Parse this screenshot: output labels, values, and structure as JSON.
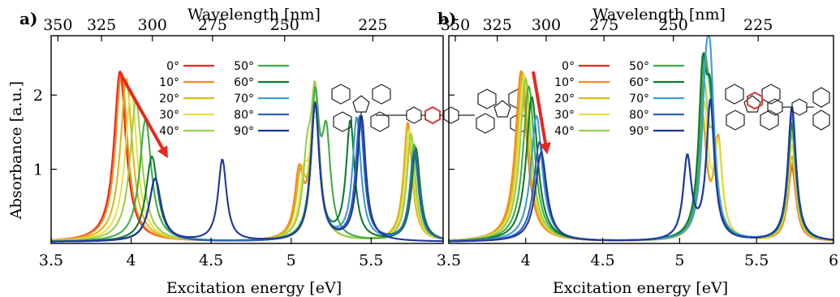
{
  "chart_data": [
    {
      "panel_label": "a)",
      "type": "line",
      "xlabel": "Excitation energy [eV]",
      "ylabel": "Absorbance [a.u.]",
      "top_axis_label": "Wavelength [nm]",
      "xlim": [
        3.5,
        5.95
      ],
      "ylim": [
        0,
        2.8
      ],
      "x_ticks": [
        3.5,
        4,
        4.5,
        5,
        5.5
      ],
      "x_tick_labels": [
        "3.5",
        "4",
        "4.5",
        "5",
        "5.5"
      ],
      "y_ticks": [
        1,
        2
      ],
      "y_tick_labels": [
        "1",
        "2"
      ],
      "top_ticks_nm": [
        350,
        325,
        300,
        275,
        250,
        225
      ],
      "top_tick_labels": [
        "350",
        "325",
        "300",
        "275",
        "250",
        "225"
      ],
      "legend_placement": "top-center",
      "arrow": {
        "from": {
          "x": 3.93,
          "y": 2.3
        },
        "to": {
          "x": 4.23,
          "y": 1.15
        },
        "color": "#e8281e"
      },
      "series": [
        {
          "name": "0°",
          "color": "#e8281e",
          "x": [
            3.93,
            5.05,
            5.15,
            5.73
          ],
          "y": [
            2.3,
            0.85,
            2.05,
            1.6
          ]
        },
        {
          "name": "10°",
          "color": "#f58a1f",
          "x": [
            3.94,
            5.05,
            5.15,
            5.73
          ],
          "y": [
            2.28,
            0.85,
            2.05,
            1.6
          ]
        },
        {
          "name": "20°",
          "color": "#d7bb14",
          "x": [
            3.97,
            5.06,
            5.15,
            5.73
          ],
          "y": [
            2.2,
            0.8,
            2.0,
            1.55
          ]
        },
        {
          "name": "30°",
          "color": "#e8e04a",
          "x": [
            4.0,
            5.08,
            5.15,
            5.74
          ],
          "y": [
            2.05,
            0.72,
            1.95,
            1.5
          ]
        },
        {
          "name": "40°",
          "color": "#9bcf4c",
          "x": [
            4.03,
            5.1,
            5.15,
            5.75
          ],
          "y": [
            1.9,
            0.9,
            1.9,
            1.45
          ]
        },
        {
          "name": "50°",
          "color": "#41ad49",
          "x": [
            4.09,
            5.22,
            5.15,
            5.77
          ],
          "y": [
            1.65,
            1.3,
            1.85,
            1.3
          ]
        },
        {
          "name": "60°",
          "color": "#0f7a30",
          "x": [
            4.13,
            5.37,
            5.15,
            5.78
          ],
          "y": [
            1.15,
            1.6,
            1.85,
            1.25
          ]
        },
        {
          "name": "70°",
          "color": "#3f9bd6",
          "x": [
            4.15,
            5.41,
            5.15,
            5.77
          ],
          "y": [
            0.85,
            1.65,
            1.85,
            1.2
          ]
        },
        {
          "name": "80°",
          "color": "#2c62b6",
          "x": [
            4.15,
            5.43,
            5.15,
            5.77
          ],
          "y": [
            0.85,
            1.67,
            1.85,
            1.2
          ]
        },
        {
          "name": "90°",
          "color": "#21379b",
          "x": [
            4.15,
            5.44,
            5.15,
            4.57
          ],
          "y": [
            0.85,
            1.68,
            1.85,
            1.1
          ]
        }
      ]
    },
    {
      "panel_label": "b)",
      "type": "line",
      "xlabel": "Excitation energy [eV]",
      "ylabel": "",
      "top_axis_label": "Wavelength [nm]",
      "xlim": [
        3.5,
        6.0
      ],
      "ylim": [
        0,
        2.8
      ],
      "x_ticks": [
        3.5,
        4,
        4.5,
        5,
        5.5,
        6
      ],
      "x_tick_labels": [
        "3.5",
        "4",
        "4.5",
        "5",
        "5.5",
        "6"
      ],
      "y_ticks": [
        1,
        2
      ],
      "y_tick_labels": [
        "",
        ""
      ],
      "top_ticks_nm": [
        350,
        325,
        300,
        275,
        250,
        225
      ],
      "top_tick_labels": [
        "350",
        "325",
        "300",
        "275",
        "250",
        "225"
      ],
      "legend_placement": "top-center",
      "arrow": {
        "from": {
          "x": 4.05,
          "y": 2.3
        },
        "to": {
          "x": 4.14,
          "y": 1.2
        },
        "color": "#e8281e"
      },
      "series": [
        {
          "name": "0°",
          "color": "#e8281e",
          "x": [
            3.97,
            5.15,
            5.25,
            5.73
          ],
          "y": [
            2.3,
            1.5,
            1.3,
            1.0
          ]
        },
        {
          "name": "10°",
          "color": "#f58a1f",
          "x": [
            3.97,
            5.15,
            5.25,
            5.73
          ],
          "y": [
            2.3,
            1.5,
            1.3,
            1.05
          ]
        },
        {
          "name": "20°",
          "color": "#d7bb14",
          "x": [
            3.98,
            5.15,
            5.25,
            5.73
          ],
          "y": [
            2.28,
            1.6,
            1.25,
            1.15
          ]
        },
        {
          "name": "30°",
          "color": "#e8e04a",
          "x": [
            3.99,
            5.16,
            5.25,
            5.73
          ],
          "y": [
            2.25,
            1.75,
            1.2,
            1.3
          ]
        },
        {
          "name": "40°",
          "color": "#9bcf4c",
          "x": [
            4.0,
            5.16,
            5.22,
            5.73
          ],
          "y": [
            2.2,
            1.9,
            1.1,
            1.45
          ]
        },
        {
          "name": "50°",
          "color": "#41ad49",
          "x": [
            4.02,
            5.16,
            5.2,
            5.73
          ],
          "y": [
            2.1,
            2.05,
            1.2,
            1.55
          ]
        },
        {
          "name": "60°",
          "color": "#0f7a30",
          "x": [
            4.04,
            5.15,
            5.2,
            5.73
          ],
          "y": [
            1.95,
            2.05,
            1.6,
            1.6
          ]
        },
        {
          "name": "70°",
          "color": "#3f9bd6",
          "x": [
            4.07,
            5.17,
            5.2,
            5.73
          ],
          "y": [
            1.7,
            1.6,
            1.8,
            1.7
          ]
        },
        {
          "name": "80°",
          "color": "#2c62b6",
          "x": [
            4.09,
            5.2,
            5.05,
            5.73
          ],
          "y": [
            1.35,
            1.85,
            1.1,
            1.8
          ]
        },
        {
          "name": "90°",
          "color": "#21379b",
          "x": [
            4.1,
            5.2,
            5.05,
            5.73
          ],
          "y": [
            1.2,
            1.88,
            1.1,
            1.82
          ]
        }
      ]
    }
  ]
}
